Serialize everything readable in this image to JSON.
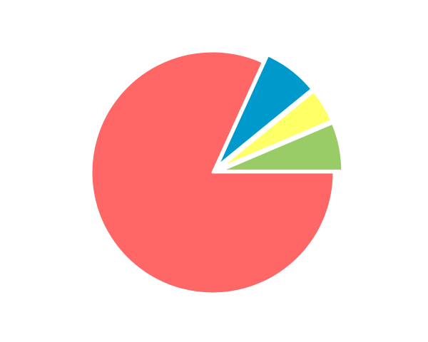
{
  "chart_data": {
    "type": "pie",
    "title": "",
    "slices": [
      {
        "value": 81.8,
        "color": "#ff6666",
        "exploded": false
      },
      {
        "value": 7.3,
        "color": "#0099cc",
        "exploded": true
      },
      {
        "value": 4.5,
        "color": "#ffff66",
        "exploded": true
      },
      {
        "value": 6.4,
        "color": "#99cc66",
        "exploded": true
      }
    ],
    "start_angle_deg": 0,
    "direction": "clockwise",
    "legend": "none",
    "labels_shown": false
  }
}
